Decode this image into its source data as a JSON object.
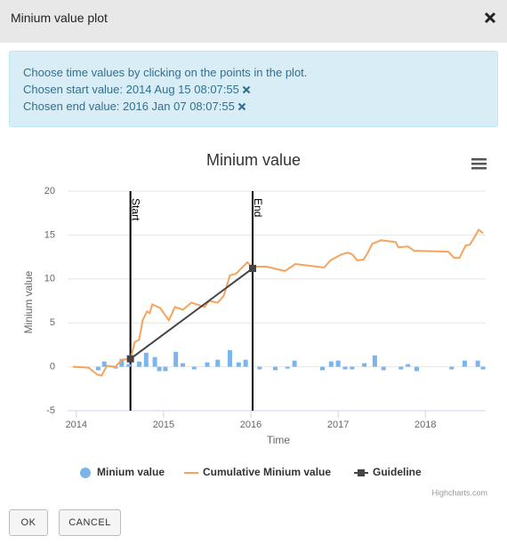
{
  "dialog": {
    "title": "Minium value plot"
  },
  "info": {
    "instruction": "Choose time values by clicking on the points in the plot.",
    "start": "Chosen start value: 2014 Aug 15 08:07:55",
    "end": "Chosen end value: 2016 Jan 07 08:07:55"
  },
  "chart_data": {
    "type": "combo",
    "title": "Minium value",
    "y_label": "Minium value",
    "x_label": "Time",
    "xlim": [
      2013.9,
      2018.69
    ],
    "xticks": [
      2014,
      2015,
      2016,
      2017,
      2018
    ],
    "ylim": [
      -5,
      20
    ],
    "yticks": [
      -5,
      0,
      5,
      10,
      15,
      20
    ],
    "grid": true,
    "series": [
      {
        "name": "Minium value",
        "kind": "column",
        "color": "#7cb5ec",
        "x": [
          2014.25,
          2014.32,
          2014.45,
          2014.52,
          2014.6,
          2014.72,
          2014.8,
          2014.9,
          2014.95,
          2015.02,
          2015.14,
          2015.22,
          2015.35,
          2015.5,
          2015.62,
          2015.76,
          2015.86,
          2015.94,
          2016.1,
          2016.28,
          2016.42,
          2016.5,
          2016.82,
          2016.92,
          2017.0,
          2017.08,
          2017.16,
          2017.3,
          2017.42,
          2017.52,
          2017.72,
          2017.8,
          2017.9,
          2018.3,
          2018.45,
          2018.6,
          2018.66
        ],
        "values": [
          -0.4,
          0.6,
          -0.2,
          0.9,
          0.3,
          0.6,
          1.6,
          1.1,
          -0.5,
          -0.5,
          1.7,
          0.4,
          -0.3,
          0.5,
          0.8,
          1.9,
          0.5,
          0.8,
          -0.3,
          -0.4,
          -0.2,
          0.7,
          -0.4,
          0.6,
          0.7,
          -0.3,
          -0.3,
          0.4,
          1.3,
          -0.4,
          -0.3,
          0.3,
          -0.5,
          -0.3,
          0.7,
          0.7,
          -0.3
        ]
      },
      {
        "name": "Cumulative Minium value",
        "kind": "line",
        "color": "#f7a35c",
        "x": [
          2013.96,
          2014.14,
          2014.24,
          2014.29,
          2014.35,
          2014.45,
          2014.52,
          2014.62,
          2014.67,
          2014.72,
          2014.76,
          2014.81,
          2014.84,
          2014.87,
          2014.96,
          2015.06,
          2015.13,
          2015.22,
          2015.32,
          2015.47,
          2015.52,
          2015.62,
          2015.69,
          2015.76,
          2015.83,
          2015.93,
          2015.96,
          2016.01,
          2016.18,
          2016.39,
          2016.51,
          2016.84,
          2016.91,
          2017.04,
          2017.11,
          2017.16,
          2017.22,
          2017.29,
          2017.34,
          2017.39,
          2017.49,
          2017.66,
          2017.69,
          2017.8,
          2017.87,
          2018.26,
          2018.33,
          2018.39,
          2018.46,
          2018.51,
          2018.61,
          2018.66
        ],
        "values": [
          0,
          -0.1,
          -0.9,
          -1.0,
          0.1,
          0,
          0.8,
          0.9,
          2.8,
          3.1,
          5.3,
          6.3,
          6.1,
          7.1,
          6.7,
          5.3,
          6.8,
          6.5,
          7.3,
          6.8,
          7.5,
          7.3,
          8.1,
          10.4,
          10.6,
          11.6,
          11.9,
          11.4,
          11.4,
          10.9,
          11.7,
          11.3,
          12.1,
          12.8,
          13.0,
          12.8,
          12.1,
          12.2,
          13.0,
          14.0,
          14.4,
          14.2,
          13.6,
          13.7,
          13.2,
          13.1,
          12.4,
          12.4,
          13.8,
          13.9,
          15.6,
          15.2
        ]
      },
      {
        "name": "Guideline",
        "kind": "guide",
        "color": "#434348",
        "x": [
          2014.62,
          2016.02
        ],
        "values": [
          0.9,
          11.2
        ]
      }
    ],
    "plot_lines": [
      {
        "value": 2014.62,
        "label": "Start"
      },
      {
        "value": 2016.02,
        "label": "End"
      }
    ],
    "credits": "Highcharts.com"
  },
  "buttons": {
    "ok": "OK",
    "cancel": "CANCEL"
  }
}
